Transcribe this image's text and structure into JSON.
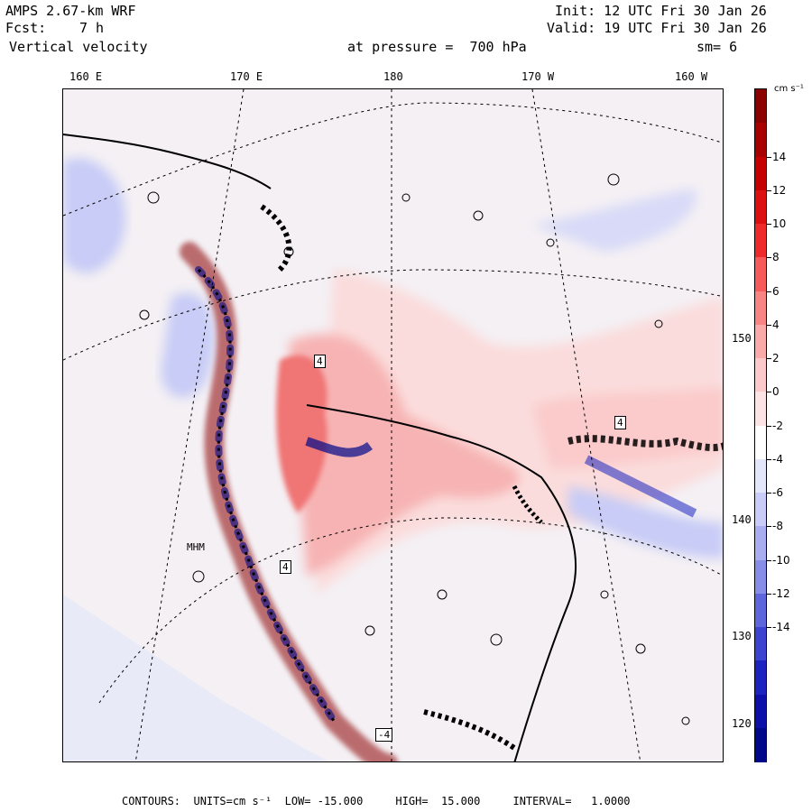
{
  "header": {
    "model": "AMPS 2.67-km WRF",
    "forecast_label": "Fcst:",
    "forecast_hours": "7 h",
    "field": "Vertical velocity",
    "init": "Init: 12 UTC Fri 30 Jan 26",
    "valid": "Valid: 19 UTC Fri 30 Jan 26",
    "pressure": "at pressure =  700 hPa",
    "smoothing": "sm= 6"
  },
  "axes": {
    "top_longitudes": [
      "160 E",
      "170 E",
      "180",
      "170 W",
      "160 W"
    ],
    "right_longitudes": [
      "150 W",
      "140 W",
      "130 W",
      "120 W"
    ]
  },
  "colorbar": {
    "units": "cm s⁻¹",
    "tick_labels": [
      "14",
      "12",
      "10",
      "8",
      "6",
      "4",
      "2",
      "0",
      "-2",
      "-4",
      "-6",
      "-8",
      "-10",
      "-12",
      "-14"
    ],
    "colors": [
      "#8b0000",
      "#a80000",
      "#c40000",
      "#dc1010",
      "#ee2a2a",
      "#f65a5a",
      "#f88484",
      "#fbaaaa",
      "#fccaca",
      "#fde4e4",
      "#ffffff",
      "#e4e6fb",
      "#c8ccf6",
      "#a8aef0",
      "#868ee8",
      "#5e66dc",
      "#3a44d0",
      "#1c24c0",
      "#0c10a8",
      "#00088a"
    ]
  },
  "map_labels": {
    "station": "MHM",
    "contour_value": "4",
    "contour_value_neg": "-4"
  },
  "footer": {
    "contours": "CONTOURS:  UNITS=cm s⁻¹  LOW= -15.000     HIGH=  15.000     INTERVAL=   1.0000"
  }
}
